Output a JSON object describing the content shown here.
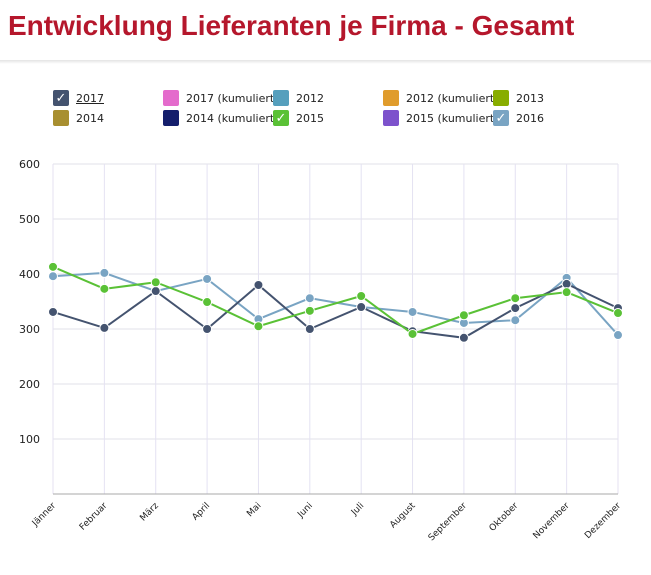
{
  "title": "Entwicklung Lieferanten je Firma - Gesamt",
  "legend": [
    {
      "label": "2017",
      "color": "#44536f",
      "checked": true
    },
    {
      "label": "2017 (kumuliert)",
      "color": "#e46bcc",
      "checked": false
    },
    {
      "label": "2012",
      "color": "#559fbd",
      "checked": false
    },
    {
      "label": "2012 (kumuliert)",
      "color": "#e09c2c",
      "checked": false
    },
    {
      "label": "2013",
      "color": "#88ad00",
      "checked": false
    },
    {
      "label": "2014",
      "color": "#a88f30",
      "checked": false
    },
    {
      "label": "2014 (kumuliert)",
      "color": "#141e6c",
      "checked": false
    },
    {
      "label": "2015",
      "color": "#5ac136",
      "checked": true
    },
    {
      "label": "2015 (kumuliert)",
      "color": "#7d52cc",
      "checked": false
    },
    {
      "label": "2016",
      "color": "#79a4c3",
      "checked": true
    }
  ],
  "chart_data": {
    "type": "line",
    "title": "Entwicklung Lieferanten je Firma - Gesamt",
    "categories": [
      "Jänner",
      "Februar",
      "März",
      "April",
      "Mai",
      "Juni",
      "Juli",
      "August",
      "September",
      "Oktober",
      "November",
      "Dezember"
    ],
    "yticks": [
      100,
      200,
      300,
      400,
      500,
      600
    ],
    "ylim": [
      0,
      600
    ],
    "grid": true,
    "series": [
      {
        "name": "2016",
        "color": "#79a4c3",
        "values": [
          396,
          402,
          369,
          391,
          318,
          356,
          340,
          331,
          311,
          316,
          393,
          289
        ]
      },
      {
        "name": "2017",
        "color": "#44536f",
        "values": [
          331,
          302,
          369,
          300,
          380,
          300,
          340,
          296,
          284,
          338,
          382,
          338
        ]
      },
      {
        "name": "2015",
        "color": "#5ac136",
        "values": [
          413,
          373,
          385,
          349,
          305,
          333,
          360,
          291,
          325,
          356,
          367,
          329
        ]
      }
    ]
  }
}
